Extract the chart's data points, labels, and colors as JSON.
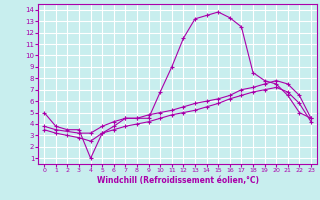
{
  "xlabel": "Windchill (Refroidissement éolien,°C)",
  "xlim": [
    -0.5,
    23.5
  ],
  "ylim": [
    0.5,
    14.5
  ],
  "xticks": [
    0,
    1,
    2,
    3,
    4,
    5,
    6,
    7,
    8,
    9,
    10,
    11,
    12,
    13,
    14,
    15,
    16,
    17,
    18,
    19,
    20,
    21,
    22,
    23
  ],
  "yticks": [
    1,
    2,
    3,
    4,
    5,
    6,
    7,
    8,
    9,
    10,
    11,
    12,
    13,
    14
  ],
  "bg_color": "#c8eeee",
  "line_color": "#aa00aa",
  "grid_color": "#ffffff",
  "line1_x": [
    0,
    1,
    2,
    3,
    4,
    5,
    6,
    7,
    8,
    9,
    10,
    11,
    12,
    13,
    14,
    15,
    16,
    17,
    18,
    19,
    20,
    21,
    22,
    23
  ],
  "line1_y": [
    5.0,
    3.8,
    3.5,
    3.5,
    1.0,
    3.2,
    3.8,
    4.5,
    4.5,
    4.5,
    6.8,
    9.0,
    11.5,
    13.2,
    13.5,
    13.8,
    13.3,
    12.5,
    8.5,
    7.8,
    7.5,
    6.5,
    5.0,
    4.5
  ],
  "line2_x": [
    0,
    1,
    3,
    4,
    5,
    6,
    7,
    8,
    9,
    10,
    11,
    12,
    13,
    14,
    15,
    16,
    17,
    18,
    19,
    20,
    21,
    22,
    23
  ],
  "line2_y": [
    3.8,
    3.5,
    3.2,
    3.2,
    3.8,
    4.2,
    4.5,
    4.5,
    4.8,
    5.0,
    5.2,
    5.5,
    5.8,
    6.0,
    6.2,
    6.5,
    7.0,
    7.2,
    7.5,
    7.8,
    7.5,
    6.5,
    4.5
  ],
  "line3_x": [
    0,
    1,
    2,
    3,
    4,
    5,
    6,
    7,
    8,
    9,
    10,
    11,
    12,
    13,
    14,
    15,
    16,
    17,
    18,
    19,
    20,
    21,
    22,
    23
  ],
  "line3_y": [
    3.5,
    3.2,
    3.0,
    2.8,
    2.5,
    3.2,
    3.5,
    3.8,
    4.0,
    4.2,
    4.5,
    4.8,
    5.0,
    5.2,
    5.5,
    5.8,
    6.2,
    6.5,
    6.8,
    7.0,
    7.2,
    6.8,
    5.8,
    4.2
  ]
}
